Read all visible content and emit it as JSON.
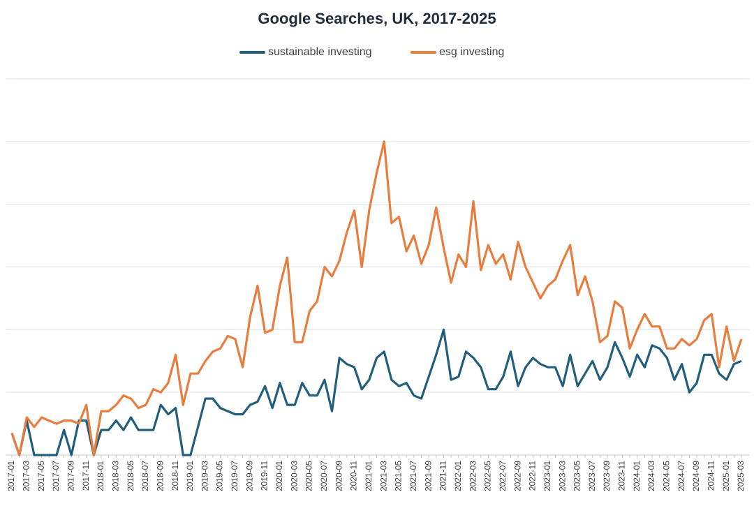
{
  "chart_data": {
    "type": "line",
    "title": "Google Searches, UK, 2017-2025",
    "categories": [
      "2017-01",
      null,
      "2017-03",
      null,
      "2017-05",
      null,
      "2017-07",
      null,
      "2017-09",
      null,
      "2017-11",
      null,
      "2018-01",
      null,
      "2018-03",
      null,
      "2018-05",
      null,
      "2018-07",
      null,
      "2018-09",
      null,
      "2018-11",
      null,
      "2019-01",
      null,
      "2019-03",
      null,
      "2019-05",
      null,
      "2019-07",
      null,
      "2019-09",
      null,
      "2019-11",
      null,
      "2020-01",
      null,
      "2020-03",
      null,
      "2020-05",
      null,
      "2020-07",
      null,
      "2020-09",
      null,
      "2020-11",
      null,
      "2021-01",
      null,
      "2021-03",
      null,
      "2021-05",
      null,
      "2021-07",
      null,
      "2021-09",
      null,
      "2021-11",
      null,
      "2022-01",
      null,
      "2022-03",
      null,
      "2022-05",
      null,
      "2022-07",
      null,
      "2022-09",
      null,
      "2022-11",
      null,
      "2023-01",
      null,
      "2023-03",
      null,
      "2023-05",
      null,
      "2023-07",
      null,
      "2023-09",
      null,
      "2023-11",
      null,
      "2024-01",
      null,
      "2024-03",
      null,
      "2024-05",
      null,
      "2024-07",
      null,
      "2024-09",
      null,
      "2024-11",
      null,
      "2025-01",
      null,
      "2025-03"
    ],
    "series": [
      {
        "name": "sustainable investing",
        "color": "#215f7d",
        "values": [
          7,
          0,
          11,
          0,
          0,
          0,
          0,
          8,
          0,
          11,
          11,
          0,
          8,
          8,
          11,
          8,
          12,
          8,
          8,
          8,
          16,
          13,
          15,
          0,
          0,
          9,
          18,
          18,
          15,
          14,
          13,
          13,
          16,
          17,
          22,
          15,
          23,
          16,
          16,
          23,
          19,
          19,
          24,
          14,
          31,
          29,
          28,
          21,
          24,
          31,
          33,
          24,
          22,
          23,
          19,
          18,
          25,
          32,
          40,
          24,
          25,
          33,
          31,
          28,
          21,
          21,
          25,
          33,
          22,
          28,
          31,
          29,
          28,
          28,
          22,
          32,
          22,
          26,
          30,
          24,
          28,
          36,
          31,
          25,
          32,
          28,
          35,
          34,
          31,
          24,
          29,
          20,
          23,
          32,
          32,
          26,
          24,
          29,
          30
        ]
      },
      {
        "name": "esg investing",
        "color": "#e87d3e",
        "values": [
          7,
          0,
          12,
          9,
          12,
          11,
          10,
          11,
          11,
          10,
          16,
          0,
          14,
          14,
          16,
          19,
          18,
          15,
          16,
          21,
          20,
          23,
          32,
          16,
          26,
          26,
          30,
          33,
          34,
          38,
          37,
          28,
          44,
          54,
          39,
          40,
          54,
          63,
          36,
          36,
          46,
          49,
          60,
          57,
          62,
          71,
          78,
          60,
          78,
          90,
          100,
          74,
          76,
          65,
          70,
          61,
          67,
          79,
          66,
          55,
          64,
          60,
          81,
          59,
          67,
          61,
          64,
          56,
          68,
          60,
          55,
          50,
          54,
          56,
          62,
          67,
          51,
          57,
          49,
          36,
          38,
          49,
          47,
          34,
          40,
          45,
          41,
          41,
          34,
          34,
          37,
          35,
          37,
          43,
          45,
          28,
          41,
          30,
          37
        ]
      }
    ],
    "ylim": [
      0,
      120
    ],
    "yticks": [
      0,
      20,
      40,
      60,
      80,
      100,
      120
    ],
    "grid": true,
    "legend": "top"
  }
}
